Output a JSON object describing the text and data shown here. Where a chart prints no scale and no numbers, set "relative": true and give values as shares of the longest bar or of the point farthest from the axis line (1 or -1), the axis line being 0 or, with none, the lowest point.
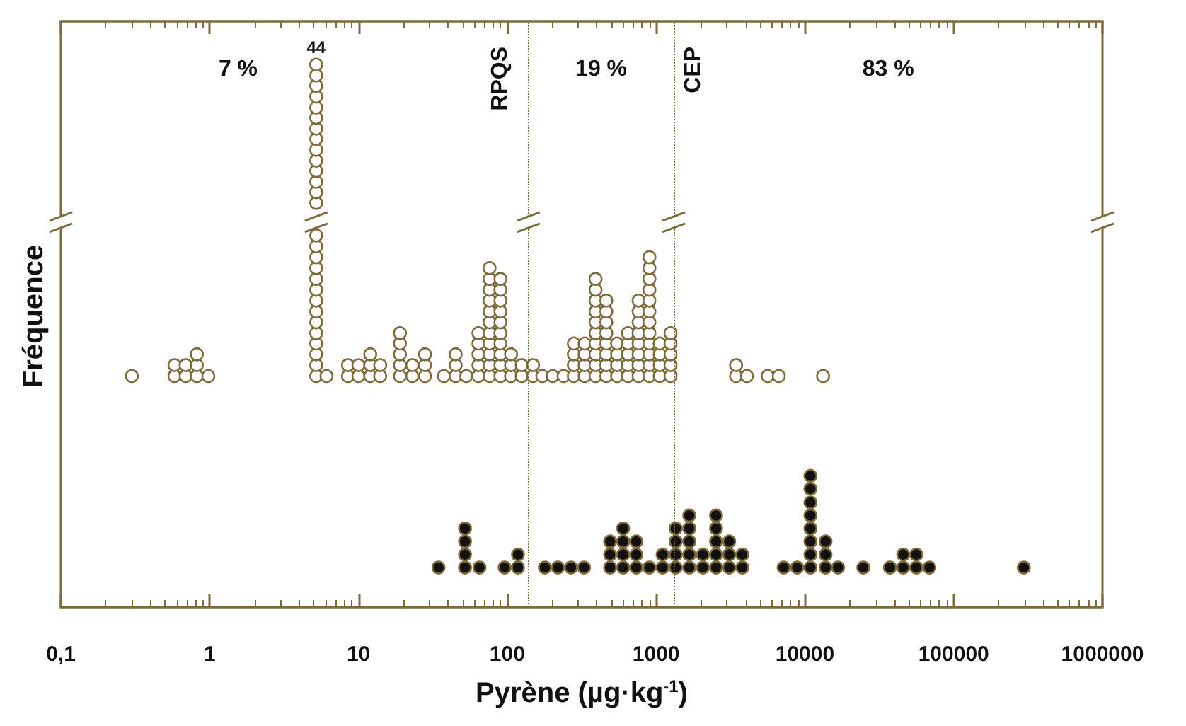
{
  "chart_data": {
    "type": "scatter",
    "relative": true,
    "xlabel": "Pyrène (µg·kg$^{-1}$)",
    "ylabel": "Fréquence",
    "log": "x",
    "marker": "circle",
    "xlim": [
      0.1,
      1000000
    ],
    "xticks": [
      {
        "value": 0.1,
        "label": "0,1"
      },
      1,
      10,
      100,
      1000,
      10000,
      100000,
      1000000
    ],
    "ref_lines": [
      {
        "axis": "x",
        "value": 139,
        "label": "RPQS",
        "color": "#7d6b3b",
        "line_style": "dotted"
      },
      {
        "axis": "x",
        "value": 1316,
        "label": "CEP",
        "color": "#7d6b3b",
        "line_style": "dotted"
      }
    ],
    "annotations": [
      "7 %",
      "19 %",
      "83 %",
      {
        "text": "44",
        "x": 5.2,
        "y": 1
      }
    ],
    "series": [
      {
        "color": "#ffffff",
        "x": [
          0.3,
          0.58,
          0.58,
          0.69,
          0.69,
          0.82,
          0.82,
          0.82,
          0.98,
          5.2,
          5.2,
          5.2,
          5.2,
          5.2,
          5.2,
          5.2,
          5.2,
          5.2,
          5.2,
          5.2,
          5.2,
          5.2,
          5.2,
          5.2,
          5.2,
          5.2,
          5.2,
          5.2,
          5.2,
          5.2,
          5.2,
          5.2,
          5.2,
          5.2,
          5.2,
          5.2,
          5.2,
          6.1,
          8.5,
          8.5,
          10,
          10,
          12,
          12,
          12,
          14,
          14,
          19,
          19,
          19,
          19,
          19,
          23,
          23,
          28,
          28,
          28,
          37.5,
          45,
          45,
          45,
          53,
          64,
          64,
          64,
          64,
          64,
          76,
          76,
          76,
          76,
          76,
          76,
          76,
          76,
          76,
          76,
          76,
          90,
          90,
          90,
          90,
          90,
          90,
          90,
          90,
          90,
          90,
          106,
          106,
          106,
          125,
          125,
          149,
          149,
          172,
          202,
          239,
          280,
          280,
          280,
          280,
          331,
          331,
          331,
          331,
          392,
          392,
          392,
          392,
          392,
          392,
          392,
          392,
          392,
          392,
          463,
          463,
          463,
          463,
          463,
          463,
          463,
          463,
          547,
          547,
          547,
          547,
          647,
          647,
          647,
          647,
          647,
          763,
          763,
          763,
          763,
          763,
          763,
          763,
          763,
          902,
          902,
          902,
          902,
          902,
          902,
          902,
          902,
          902,
          902,
          902,
          902,
          1058,
          1058,
          1058,
          1058,
          1251,
          1251,
          1251,
          1251,
          1251,
          3450,
          3450,
          4080,
          5620,
          6680,
          13250
        ],
        "values": [
          0.426,
          0.426,
          0.446,
          0.426,
          0.446,
          0.426,
          0.446,
          0.466,
          0.426,
          0.426,
          0.446,
          0.466,
          0.486,
          0.505,
          0.525,
          0.545,
          0.565,
          0.585,
          0.605,
          0.625,
          0.645,
          0.665,
          0.685,
          0.745,
          0.765,
          0.784,
          0.804,
          0.823,
          0.843,
          0.863,
          0.882,
          0.902,
          0.921,
          0.941,
          0.961,
          0.98,
          1,
          0.426,
          0.426,
          0.446,
          0.426,
          0.446,
          0.426,
          0.446,
          0.466,
          0.426,
          0.446,
          0.426,
          0.446,
          0.466,
          0.486,
          0.505,
          0.426,
          0.446,
          0.426,
          0.446,
          0.466,
          0.426,
          0.426,
          0.446,
          0.466,
          0.426,
          0.426,
          0.446,
          0.466,
          0.486,
          0.505,
          0.426,
          0.446,
          0.466,
          0.486,
          0.505,
          0.525,
          0.545,
          0.565,
          0.585,
          0.605,
          0.625,
          0.426,
          0.446,
          0.466,
          0.486,
          0.505,
          0.525,
          0.545,
          0.565,
          0.585,
          0.605,
          0.426,
          0.446,
          0.466,
          0.426,
          0.446,
          0.426,
          0.446,
          0.426,
          0.426,
          0.426,
          0.426,
          0.446,
          0.466,
          0.486,
          0.426,
          0.446,
          0.466,
          0.486,
          0.426,
          0.446,
          0.466,
          0.486,
          0.505,
          0.525,
          0.545,
          0.565,
          0.585,
          0.605,
          0.426,
          0.446,
          0.466,
          0.486,
          0.505,
          0.525,
          0.545,
          0.565,
          0.426,
          0.446,
          0.466,
          0.486,
          0.426,
          0.446,
          0.466,
          0.486,
          0.505,
          0.426,
          0.446,
          0.466,
          0.486,
          0.505,
          0.525,
          0.545,
          0.565,
          0.426,
          0.446,
          0.466,
          0.486,
          0.505,
          0.525,
          0.545,
          0.565,
          0.585,
          0.605,
          0.625,
          0.645,
          0.426,
          0.446,
          0.466,
          0.486,
          0.426,
          0.446,
          0.466,
          0.486,
          0.505,
          0.426,
          0.446,
          0.426,
          0.426,
          0.426,
          0.426
        ]
      },
      {
        "color": "#111111",
        "x": [
          34.5,
          52,
          52,
          52,
          52,
          65,
          96,
          118,
          118,
          179,
          219,
          268,
          328,
          491,
          491,
          491,
          601,
          601,
          601,
          601,
          736,
          736,
          736,
          902,
          1106,
          1106,
          1355,
          1355,
          1355,
          1355,
          1672,
          1672,
          1672,
          1672,
          1672,
          2065,
          2065,
          2530,
          2530,
          2530,
          2530,
          2530,
          3100,
          3100,
          3100,
          3800,
          3800,
          7200,
          8870,
          10900,
          10900,
          10900,
          10900,
          10900,
          10900,
          10900,
          10900,
          13770,
          13770,
          13770,
          16700,
          24700,
          37300,
          45800,
          45800,
          56100,
          56100,
          68700,
          296000
        ],
        "values": [
          0.073,
          0.073,
          0.097,
          0.121,
          0.145,
          0.073,
          0.073,
          0.073,
          0.097,
          0.073,
          0.073,
          0.073,
          0.073,
          0.073,
          0.097,
          0.121,
          0.073,
          0.097,
          0.121,
          0.145,
          0.073,
          0.097,
          0.121,
          0.073,
          0.073,
          0.097,
          0.073,
          0.097,
          0.121,
          0.145,
          0.073,
          0.097,
          0.121,
          0.145,
          0.169,
          0.073,
          0.097,
          0.073,
          0.097,
          0.121,
          0.145,
          0.169,
          0.073,
          0.097,
          0.121,
          0.073,
          0.097,
          0.073,
          0.073,
          0.073,
          0.097,
          0.121,
          0.145,
          0.169,
          0.193,
          0.218,
          0.242,
          0.073,
          0.097,
          0.121,
          0.073,
          0.073,
          0.073,
          0.073,
          0.097,
          0.073,
          0.097,
          0.073,
          0.073
        ]
      }
    ]
  }
}
